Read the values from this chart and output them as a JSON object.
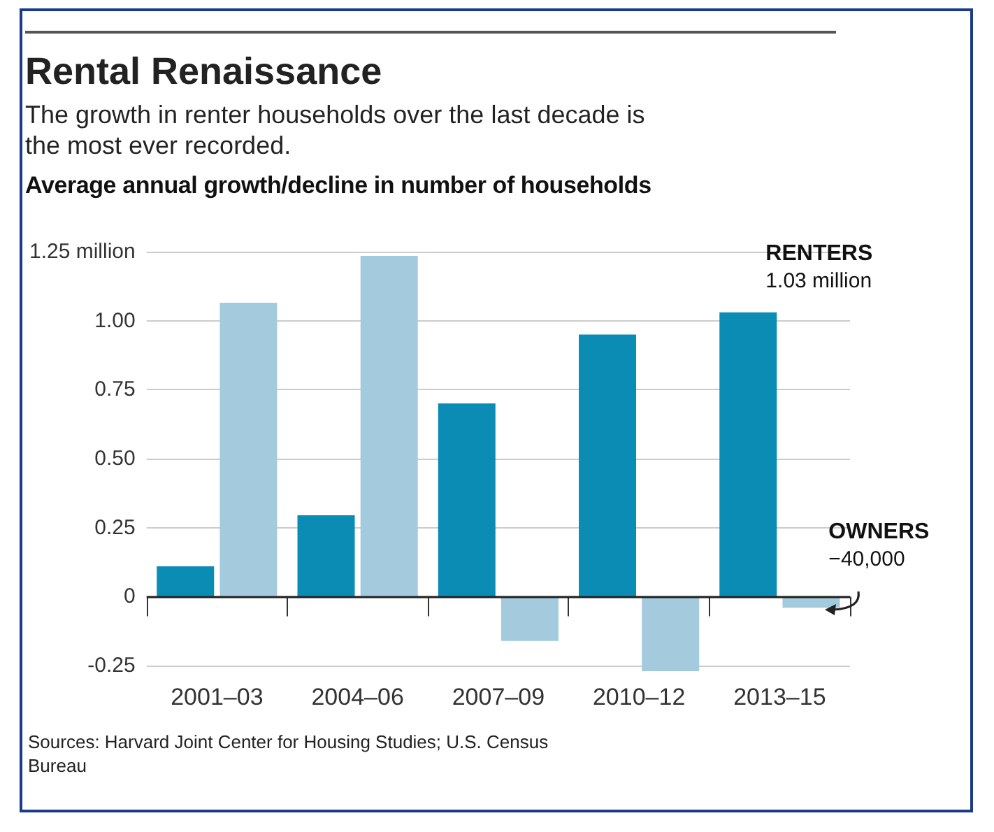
{
  "chart_data": {
    "type": "bar",
    "title": "Rental Renaissance",
    "subtitle": "The growth in renter households over the last decade is the most ever recorded.",
    "ylabel": "Average annual growth/decline in number of households",
    "categories": [
      "2001–03",
      "2004–06",
      "2007–09",
      "2010–12",
      "2013–15"
    ],
    "series": [
      {
        "name": "RENTERS",
        "color": "#0b8cb4",
        "values": [
          0.11,
          0.295,
          0.7,
          0.95,
          1.03
        ]
      },
      {
        "name": "OWNERS",
        "color": "#a3cadd",
        "values": [
          1.065,
          1.235,
          -0.16,
          -0.27,
          -0.04
        ]
      }
    ],
    "ylim": [
      -0.28,
      1.25
    ],
    "yticks": [
      {
        "value": -0.25,
        "label": "-0.25"
      },
      0,
      {
        "value": 0.25,
        "label": "0.25"
      },
      {
        "value": 0.5,
        "label": "0.50"
      },
      {
        "value": 0.75,
        "label": "0.75"
      },
      {
        "value": 1,
        "label": "1.00"
      },
      {
        "value": 1.25,
        "label": "1.25 million"
      }
    ],
    "grid": "y",
    "legend": false,
    "annotations": [
      {
        "text": "1.03 million",
        "x": "2013–15",
        "y": 1.03
      },
      {
        "text": "−40,000",
        "x": "2013–15",
        "y": -0.04
      },
      "Sources: Harvard Joint Center for Housing Studies; U.S. Census Bureau"
    ]
  }
}
